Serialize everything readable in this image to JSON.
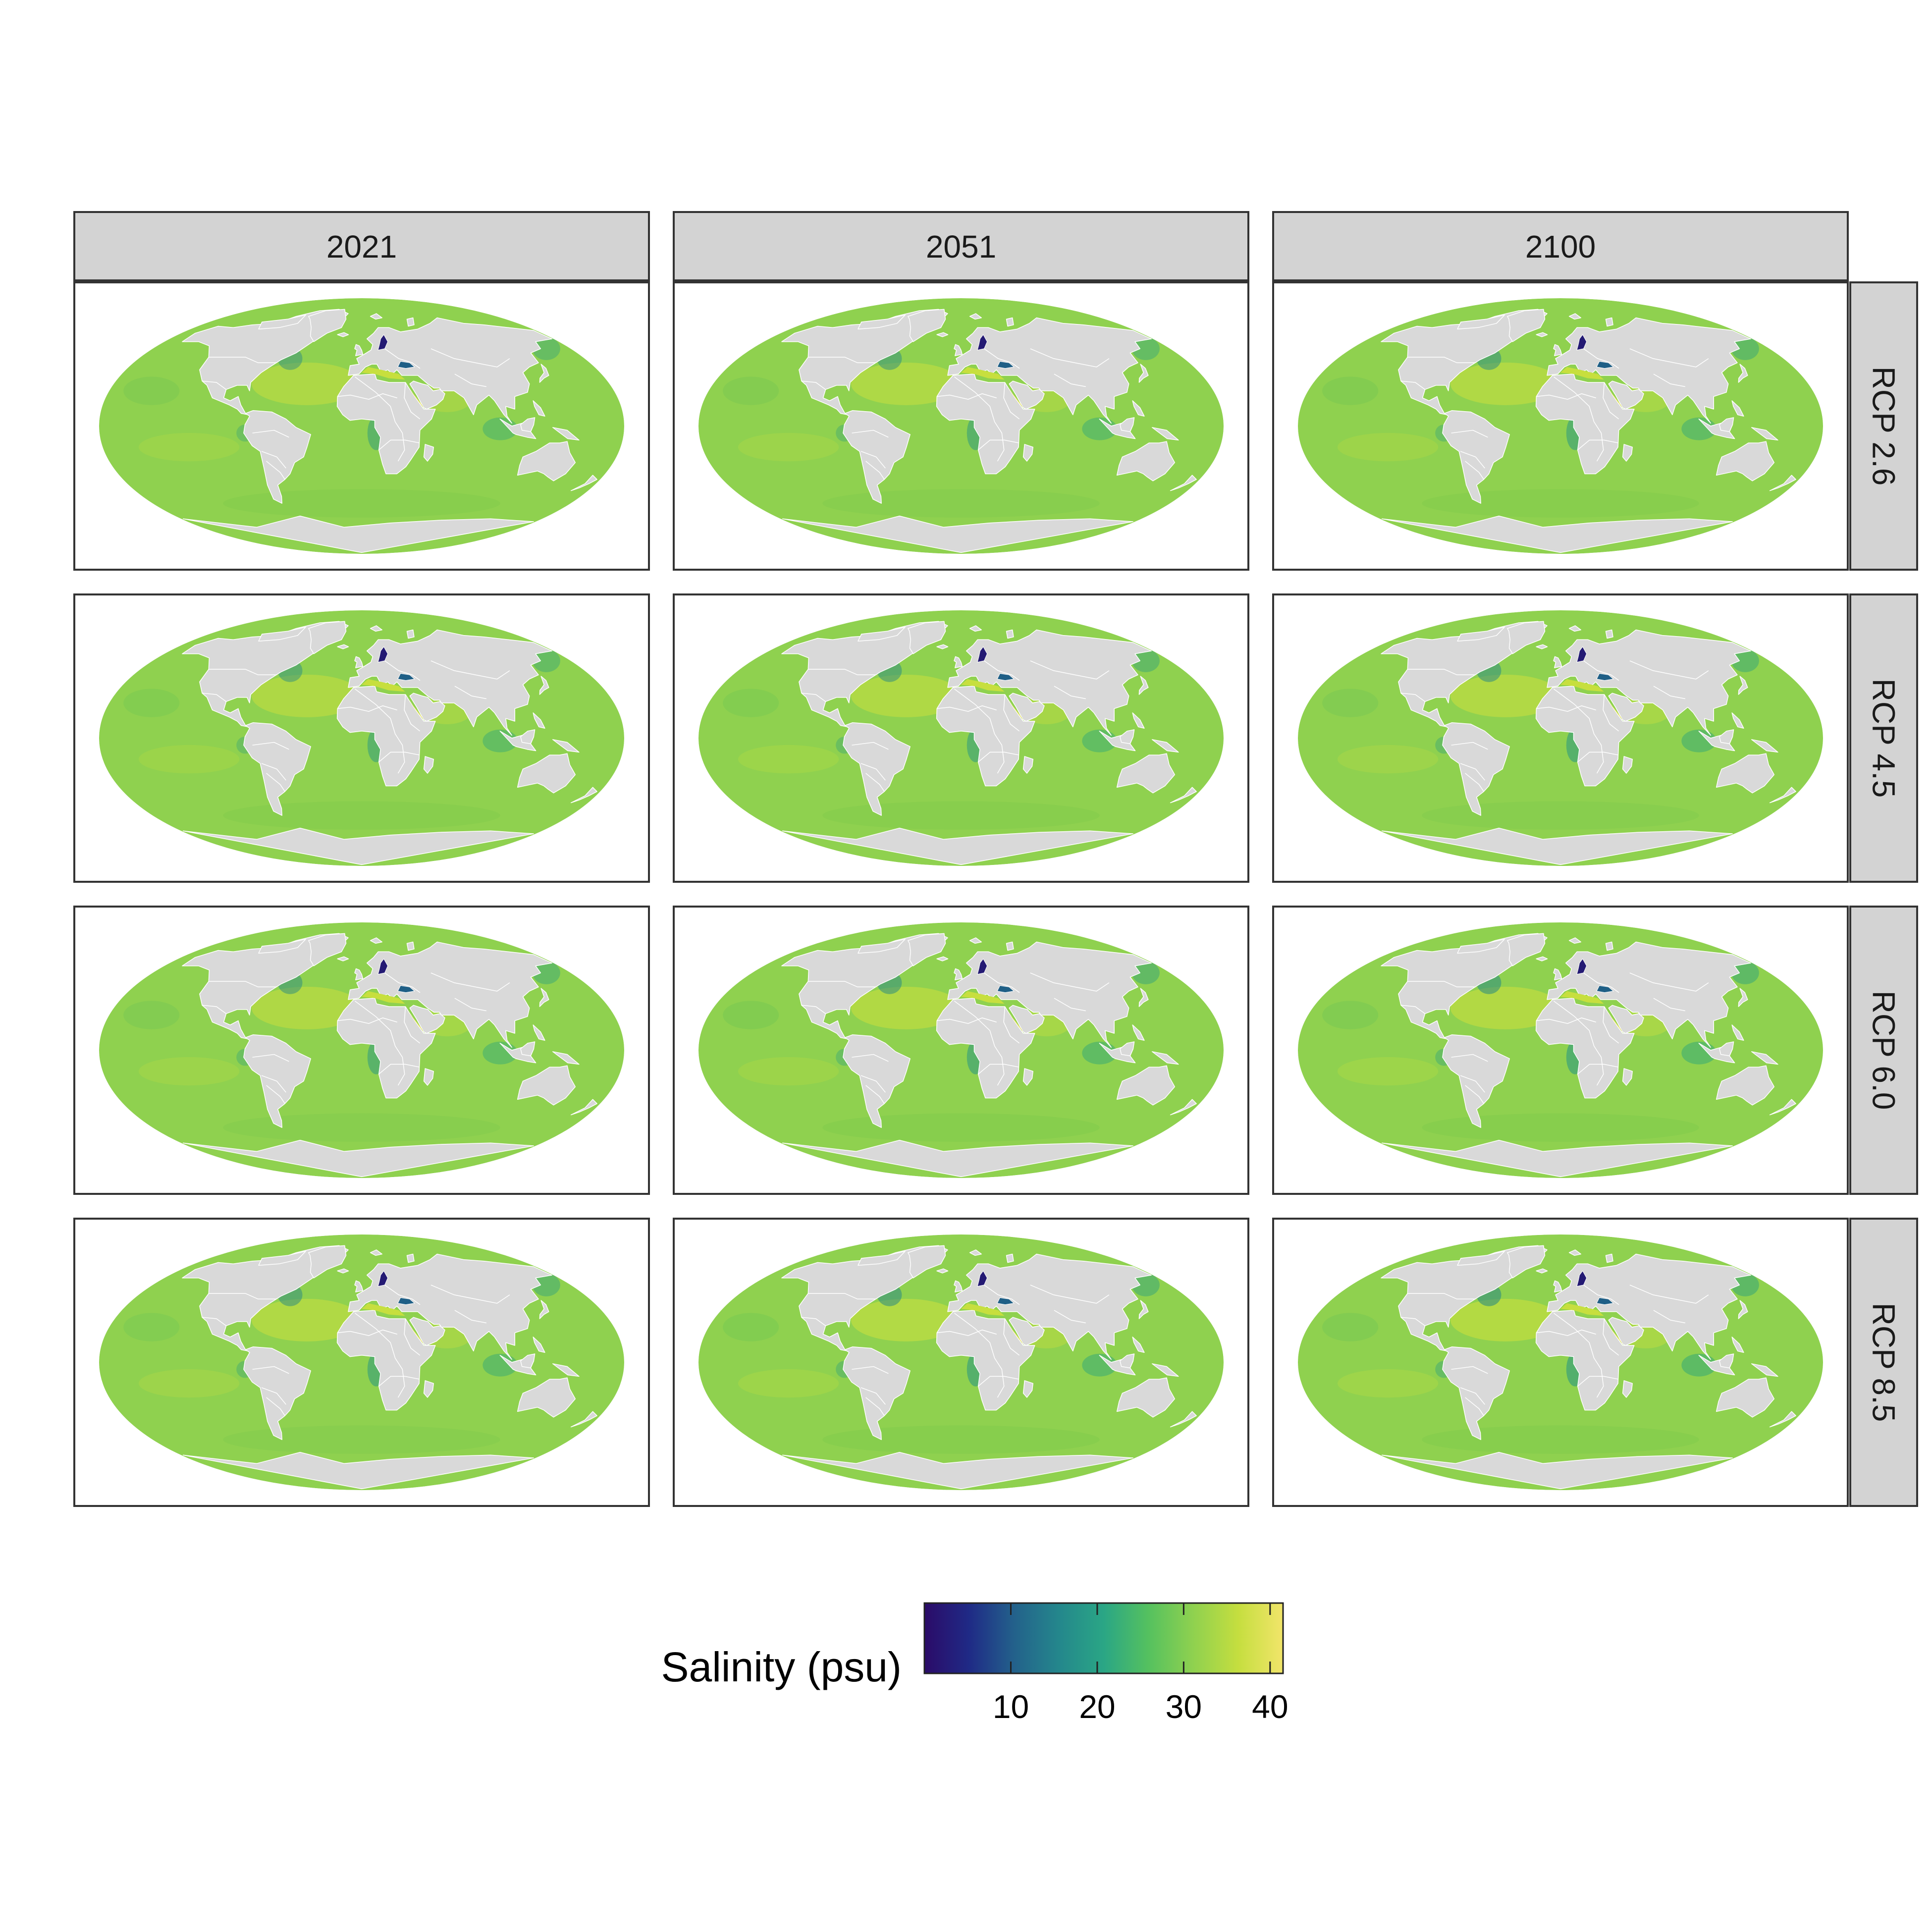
{
  "columns": [
    "2021",
    "2051",
    "2100"
  ],
  "rows": [
    "RCP 2.6",
    "RCP 4.5",
    "RCP 6.0",
    "RCP 8.5"
  ],
  "projection": "Mollweide",
  "colors": {
    "ocean": "#8fd14f",
    "land": "#d9d9d9",
    "borders": "#ffffff",
    "strip_fill": "#d3d3d3",
    "panel_border": "#333333"
  },
  "legend": {
    "title": "Salinity (psu)",
    "ticks": [
      "10",
      "20",
      "30",
      "40"
    ],
    "tick_values": [
      10,
      20,
      30,
      40
    ],
    "range": [
      0,
      41.5
    ],
    "palette": "viridis",
    "stops": [
      "#2b0b68",
      "#1f2a86",
      "#23618b",
      "#24878c",
      "#2aa685",
      "#55c15f",
      "#8fd14f",
      "#c5de3f",
      "#f2e56a"
    ]
  }
}
